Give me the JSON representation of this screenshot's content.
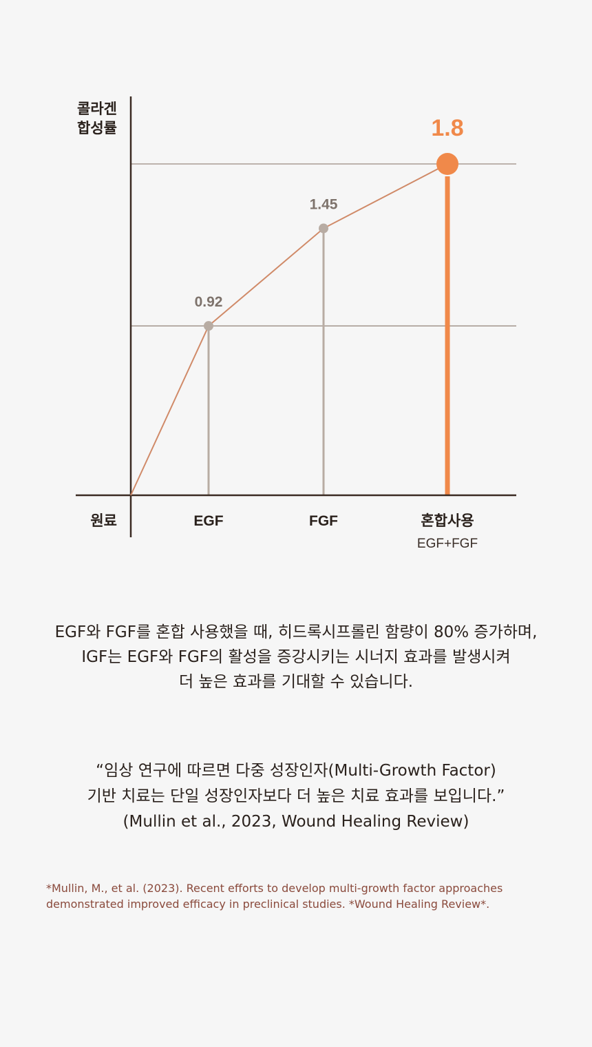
{
  "chart_data": {
    "type": "line",
    "ylabel": [
      "콜라겐",
      "합성률"
    ],
    "origin_label": "원료",
    "categories": [
      "EGF",
      "FGF",
      "혼합사용"
    ],
    "category_sublabels": [
      "",
      "",
      "EGF+FGF"
    ],
    "values": [
      0.92,
      1.45,
      1.8
    ],
    "data_labels": [
      "0.92",
      "1.45",
      "1.8"
    ],
    "ylim": [
      0,
      2
    ],
    "gridlines": [
      0.92,
      1.8
    ],
    "highlight_index": 2
  },
  "colors": {
    "background": "#f6f6f6",
    "axis": "#3a2a22",
    "gridline": "#a89c94",
    "line": "#d08a68",
    "point": "#b8aca3",
    "label_gray": "#7d726b",
    "highlight": "#f0894a"
  },
  "description": [
    "EGF와 FGF를 혼합 사용했을 때, 히드록시프롤린 함량이 80% 증가하며,",
    "IGF는 EGF와 FGF의 활성을 증강시키는 시너지 효과를 발생시켜",
    "더 높은 효과를 기대할 수 있습니다."
  ],
  "quote": [
    "“임상 연구에 따르면 다중 성장인자(Multi-Growth Factor)",
    "기반 치료는 단일 성장인자보다 더 높은 치료 효과를 보입니다.”",
    "(Mullin et al., 2023, Wound Healing Review)"
  ],
  "footnote": [
    "*Mullin, M., et al. (2023). Recent efforts to develop multi-growth factor approaches",
    "demonstrated improved efficacy in preclinical studies. *Wound Healing Review*."
  ]
}
